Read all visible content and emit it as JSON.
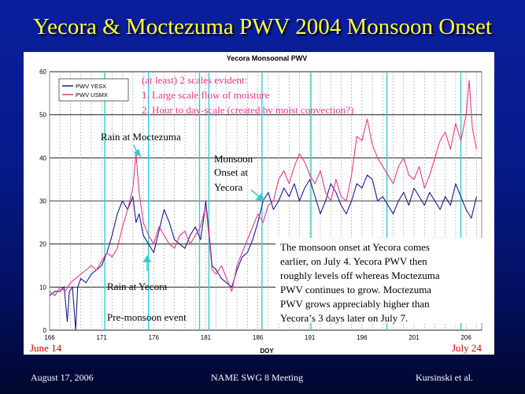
{
  "slide": {
    "title": "Yecora & Moctezuma PWV 2004 Monsoon Onset",
    "footer_left": "August 17, 2006",
    "footer_center": "NAME SWG 8 Meeting",
    "footer_right": "Kursinski et al.",
    "start_date_label": "June 14",
    "end_date_label": "July 24"
  },
  "colors": {
    "yesx": "#1a1a8c",
    "usmx": "#e8388c",
    "onset_lines": "#33cccc",
    "annotation_red": "#e8388c"
  },
  "chart_data": {
    "type": "line",
    "title": "Yecora Monsoonal PWV",
    "xlabel": "DOY",
    "ylabel": "",
    "xlim": [
      166,
      207.5
    ],
    "ylim": [
      0,
      60
    ],
    "x_ticks": [
      166,
      171,
      176,
      181,
      186,
      191,
      196,
      201,
      206
    ],
    "y_ticks": [
      0,
      10,
      20,
      30,
      40,
      50,
      60
    ],
    "legend_position": "top-left",
    "vertical_markers": [
      171.3,
      175.5,
      180.4,
      181.3,
      186.4,
      191.1,
      198.4,
      205.5
    ],
    "series": [
      {
        "name": "PWV YESX",
        "color": "#1a1a8c",
        "points": [
          [
            166.0,
            8
          ],
          [
            166.5,
            9
          ],
          [
            167.0,
            9
          ],
          [
            167.4,
            10
          ],
          [
            167.7,
            2
          ],
          [
            167.9,
            9
          ],
          [
            168.2,
            10
          ],
          [
            168.5,
            0
          ],
          [
            168.7,
            10
          ],
          [
            169.0,
            12
          ],
          [
            169.5,
            11
          ],
          [
            170.0,
            13
          ],
          [
            170.5,
            14
          ],
          [
            171.0,
            15
          ],
          [
            171.5,
            18
          ],
          [
            172.0,
            22
          ],
          [
            172.5,
            27
          ],
          [
            173.0,
            30
          ],
          [
            173.5,
            28
          ],
          [
            174.0,
            31
          ],
          [
            174.3,
            25
          ],
          [
            174.6,
            27
          ],
          [
            175.0,
            22
          ],
          [
            175.5,
            20
          ],
          [
            176.0,
            18
          ],
          [
            176.5,
            23
          ],
          [
            177.0,
            28
          ],
          [
            177.5,
            25
          ],
          [
            178.0,
            21
          ],
          [
            178.5,
            20
          ],
          [
            179.0,
            19
          ],
          [
            179.5,
            22
          ],
          [
            180.0,
            24
          ],
          [
            180.5,
            21
          ],
          [
            180.8,
            26
          ],
          [
            181.0,
            30
          ],
          [
            181.3,
            23
          ],
          [
            181.6,
            15
          ],
          [
            182.0,
            14
          ],
          [
            182.5,
            12
          ],
          [
            183.0,
            11
          ],
          [
            183.5,
            10
          ],
          [
            184.0,
            14
          ],
          [
            184.5,
            17
          ],
          [
            185.0,
            18
          ],
          [
            185.5,
            21
          ],
          [
            186.0,
            25
          ],
          [
            186.5,
            30
          ],
          [
            187.0,
            32
          ],
          [
            187.5,
            28
          ],
          [
            188.0,
            30
          ],
          [
            188.5,
            33
          ],
          [
            189.0,
            31
          ],
          [
            189.5,
            34
          ],
          [
            190.0,
            30
          ],
          [
            190.5,
            33
          ],
          [
            191.0,
            35
          ],
          [
            191.5,
            31
          ],
          [
            192.0,
            27
          ],
          [
            192.5,
            30
          ],
          [
            193.0,
            34
          ],
          [
            193.5,
            32
          ],
          [
            194.0,
            29
          ],
          [
            194.5,
            27
          ],
          [
            195.0,
            30
          ],
          [
            195.5,
            34
          ],
          [
            196.0,
            33
          ],
          [
            196.5,
            36
          ],
          [
            197.0,
            35
          ],
          [
            197.5,
            30
          ],
          [
            198.0,
            31
          ],
          [
            198.5,
            29
          ],
          [
            199.0,
            27
          ],
          [
            199.5,
            30
          ],
          [
            200.0,
            32
          ],
          [
            200.5,
            29
          ],
          [
            201.0,
            33
          ],
          [
            201.5,
            31
          ],
          [
            202.0,
            29
          ],
          [
            202.5,
            32
          ],
          [
            203.0,
            30
          ],
          [
            203.5,
            28
          ],
          [
            204.0,
            31
          ],
          [
            204.5,
            29
          ],
          [
            205.0,
            34
          ],
          [
            205.5,
            31
          ],
          [
            206.0,
            28
          ],
          [
            206.5,
            26
          ],
          [
            207.0,
            31
          ]
        ]
      },
      {
        "name": "PWV USMX",
        "color": "#e8388c",
        "points": [
          [
            166.0,
            9
          ],
          [
            166.5,
            8
          ],
          [
            167.0,
            10
          ],
          [
            167.5,
            9
          ],
          [
            168.0,
            11
          ],
          [
            168.5,
            12
          ],
          [
            169.0,
            13
          ],
          [
            169.5,
            14
          ],
          [
            170.0,
            15
          ],
          [
            170.5,
            14
          ],
          [
            171.0,
            16
          ],
          [
            171.5,
            18
          ],
          [
            172.0,
            17
          ],
          [
            172.5,
            19
          ],
          [
            173.0,
            24
          ],
          [
            173.5,
            28
          ],
          [
            174.0,
            33
          ],
          [
            174.3,
            41
          ],
          [
            174.6,
            32
          ],
          [
            175.0,
            25
          ],
          [
            175.5,
            22
          ],
          [
            176.0,
            20
          ],
          [
            176.5,
            24
          ],
          [
            177.0,
            22
          ],
          [
            177.5,
            20
          ],
          [
            178.0,
            19
          ],
          [
            178.5,
            22
          ],
          [
            179.0,
            23
          ],
          [
            179.5,
            20
          ],
          [
            180.0,
            22
          ],
          [
            180.5,
            24
          ],
          [
            181.0,
            29
          ],
          [
            181.3,
            22
          ],
          [
            181.6,
            14
          ],
          [
            182.0,
            13
          ],
          [
            182.5,
            15
          ],
          [
            183.0,
            12
          ],
          [
            183.5,
            9
          ],
          [
            184.0,
            15
          ],
          [
            184.5,
            18
          ],
          [
            185.0,
            21
          ],
          [
            185.5,
            24
          ],
          [
            186.0,
            27
          ],
          [
            186.5,
            25
          ],
          [
            187.0,
            29
          ],
          [
            187.5,
            30
          ],
          [
            188.0,
            35
          ],
          [
            188.5,
            37
          ],
          [
            189.0,
            34
          ],
          [
            189.5,
            38
          ],
          [
            190.0,
            41
          ],
          [
            190.5,
            39
          ],
          [
            191.0,
            36
          ],
          [
            191.5,
            34
          ],
          [
            192.0,
            37
          ],
          [
            192.5,
            32
          ],
          [
            193.0,
            30
          ],
          [
            193.5,
            35
          ],
          [
            194.0,
            31
          ],
          [
            194.5,
            30
          ],
          [
            195.0,
            36
          ],
          [
            195.5,
            45
          ],
          [
            196.0,
            44
          ],
          [
            196.5,
            49
          ],
          [
            197.0,
            43
          ],
          [
            197.5,
            40
          ],
          [
            198.0,
            38
          ],
          [
            198.5,
            36
          ],
          [
            199.0,
            34
          ],
          [
            199.5,
            38
          ],
          [
            200.0,
            40
          ],
          [
            200.5,
            36
          ],
          [
            201.0,
            35
          ],
          [
            201.5,
            38
          ],
          [
            202.0,
            33
          ],
          [
            202.5,
            36
          ],
          [
            203.0,
            40
          ],
          [
            203.5,
            44
          ],
          [
            204.0,
            46
          ],
          [
            204.5,
            42
          ],
          [
            205.0,
            48
          ],
          [
            205.5,
            44
          ],
          [
            206.0,
            50
          ],
          [
            206.3,
            58
          ],
          [
            206.6,
            47
          ],
          [
            207.0,
            42
          ]
        ]
      }
    ],
    "annotations": {
      "scales_1": "(at least) 2 scales evident:",
      "scales_2": "1. Large scale flow of moisture",
      "scales_3": "2. Hour to day-scale (created by moist convection?)",
      "rain_moctezuma": "Rain at Moctezuma",
      "rain_yecora": "Rain at Yecora",
      "pre_monsoon": "Pre-monsoon event",
      "onset_1": "Monsoon",
      "onset_2": "Onset at",
      "onset_3": "Yecora",
      "desc_1": "The monsoon onset at Yecora comes",
      "desc_2": "earlier, on July 4. Yecora PWV then",
      "desc_3": "roughly levels off whereas Moctezuma",
      "desc_4": "PWV continues to grow. Moctezuma",
      "desc_5": "PWV grows appreciably higher than",
      "desc_6": "Yecora’s 3 days later on July 7."
    }
  }
}
